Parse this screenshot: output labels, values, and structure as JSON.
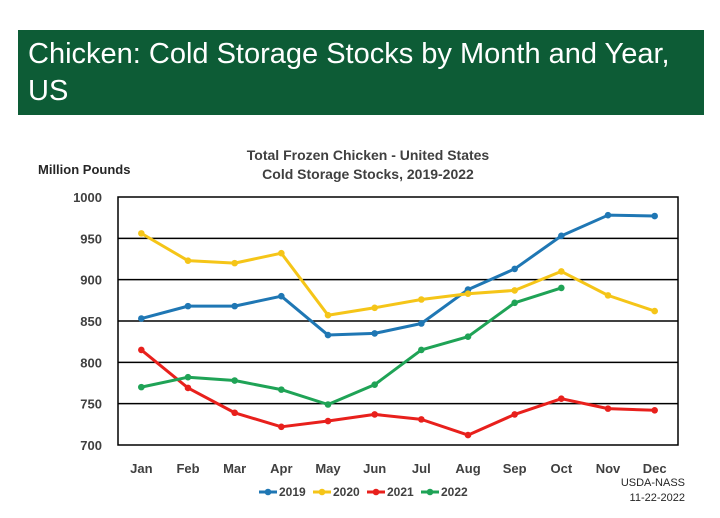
{
  "banner": {
    "title": "Chicken: Cold Storage Stocks by Month and Year, US"
  },
  "credit": {
    "source": "USDA-NASS",
    "date": "11-22-2022"
  },
  "chart_data": {
    "type": "line",
    "title_lines": [
      "Total Frozen Chicken - United States",
      "Cold Storage Stocks, 2019-2022"
    ],
    "ylabel": "Million Pounds",
    "xlabel": "",
    "ylim": [
      700,
      1000
    ],
    "yticks": [
      700,
      750,
      800,
      850,
      900,
      950,
      1000
    ],
    "grid": "horizontal",
    "legend_position": "bottom",
    "categories": [
      "Jan",
      "Feb",
      "Mar",
      "Apr",
      "May",
      "Jun",
      "Jul",
      "Aug",
      "Sep",
      "Oct",
      "Nov",
      "Dec"
    ],
    "series": [
      {
        "name": "2019",
        "color": "#1f77b4",
        "values": [
          853,
          868,
          868,
          880,
          833,
          835,
          847,
          888,
          913,
          953,
          978,
          977
        ]
      },
      {
        "name": "2020",
        "color": "#f5c518",
        "values": [
          956,
          923,
          920,
          932,
          857,
          866,
          876,
          883,
          887,
          910,
          881,
          862
        ]
      },
      {
        "name": "2021",
        "color": "#e8201c",
        "values": [
          815,
          769,
          739,
          722,
          729,
          737,
          731,
          712,
          737,
          756,
          744,
          742
        ]
      },
      {
        "name": "2022",
        "color": "#1fa356",
        "values": [
          770,
          782,
          778,
          767,
          749,
          773,
          815,
          831,
          872,
          890,
          null,
          null
        ]
      }
    ]
  }
}
